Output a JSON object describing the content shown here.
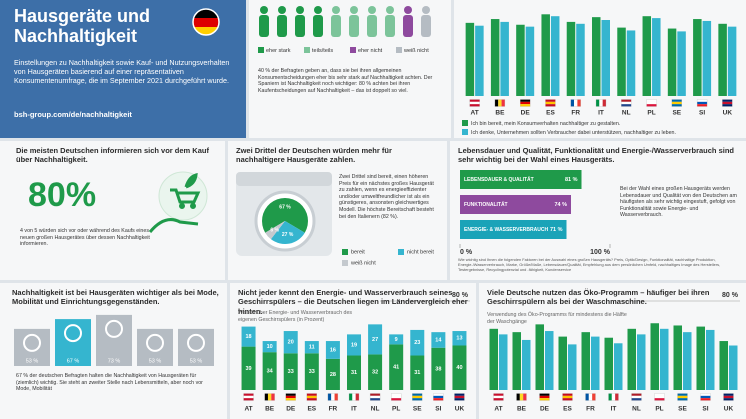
{
  "header": {
    "title": "Hausgeräte und Nachhaltigkeit",
    "text": "Einstellungen zu Nachhaltigkeit sowie Kauf- und Nutzungsverhalten von Hausgeräten basierend auf einer repräsentativen Konsumentenumfrage, die im September 2021 durchgeführt wurde.",
    "link": "bsh-group.com/de/nachhaltigkeit"
  },
  "attitude": {
    "type": "icon-count",
    "legend": [
      "eher stark",
      "teils/teils",
      "eher nicht",
      "weiß nicht"
    ],
    "counts": [
      4,
      4,
      1,
      1
    ],
    "colors": [
      "#1f9a4a",
      "#7cc49a",
      "#8e4a9e",
      "#b5bcc3"
    ],
    "text": "40 % der Befragten geben an, dass sie bei ihren allgemeinen Konsumentscheidungen eher bis sehr stark auf Nachhaltigkeit achten. Der Spaniern ist Nachhaltigkeit noch wichtiger: 80 % achten bei ihren Kaufentscheidungen auf Nachhaltigkeit – das ist doppelt so viel."
  },
  "readiness": {
    "type": "bar",
    "categories": [
      "AT",
      "BE",
      "DE",
      "ES",
      "FR",
      "IT",
      "NL",
      "PL",
      "SE",
      "SI",
      "UK"
    ],
    "series": [
      {
        "name": "Ich bin bereit, mein Konsumverhalten nachhaltiger zu gestalten.",
        "color": "#1f9a4a",
        "values": [
          77,
          81,
          75,
          86,
          78,
          83,
          72,
          84,
          71,
          81,
          76
        ]
      },
      {
        "name": "Ich denke, Unternehmen sollten Verbraucher dabei unterstützen, nachhaltiger zu leben.",
        "color": "#35b5cf",
        "values": [
          74,
          78,
          73,
          84,
          76,
          80,
          69,
          82,
          68,
          79,
          73
        ]
      }
    ]
  },
  "inform": {
    "title": "Die meisten Deutschen informieren sich vor dem Kauf über Nachhaltigkeit.",
    "figure": "80%",
    "text": "4 von 5 würden sich vor oder während des Kaufs eines neuen großen Hausgerätes über dessen Nachhaltigkeit informieren."
  },
  "price": {
    "type": "pie",
    "title": "Zwei Drittel der Deutschen würden mehr für nachhaltigere Hausgeräte zahlen.",
    "labels": [
      "bereit",
      "nicht bereit",
      "weiß nicht"
    ],
    "values": [
      67,
      27,
      6
    ],
    "value_labels": [
      "67 %",
      "27 %",
      "6 %"
    ],
    "colors": [
      "#1f9a4a",
      "#35b5cf",
      "#c4c9ce"
    ],
    "text": "Zwei Drittel sind bereit, einen höheren Preis für ein nächstes großes Hausgerät zu zahlen, wenn es energieeffizienter und/oder umweltfreundlicher ist als ein günstigeres, ansonsten gleichwertiges Modell. Die höchste Bereitschaft besteht bei den Italienern (82 %)."
  },
  "factors": {
    "type": "hbar",
    "title": "Lebensdauer und Qualität, Funktionalität und Energie-/Wasserverbrauch sind sehr wichtig bei der Wahl eines Hausgeräts.",
    "categories": [
      "LEBENSDAUER & QUALITÄT",
      "FUNKTIONALITÄT",
      "ENERGIE- & WASSERVERBRAUCH"
    ],
    "values": [
      81,
      74,
      71
    ],
    "value_labels": [
      "81 %",
      "74 %",
      "71 %"
    ],
    "colors": [
      "#1f9a4a",
      "#8e4a9e",
      "#1aa3b8"
    ],
    "xlim": [
      0,
      100
    ],
    "xticks": [
      {
        "value": 0,
        "label": "0 %"
      },
      {
        "value": 100,
        "label": "100 %"
      }
    ],
    "text": "Bei der Wahl eines großen Hausgeräts werden Lebensdauer und Qualität von den Deutschen am häufigsten als sehr wichtig eingestuft, gefolgt von Funktionalität sowie Energie- und Wasserverbrauch.",
    "note": "Wie wichtig sind Ihnen die folgenden Faktoren bei der Auswahl eines großen Hausgeräts? Preis, Optik/Design, Funktionalität, nachhaltige Produktion, Energie-/Wasserverbrauch, Marke, Größe/Maße, Lebensdauer/Qualität, Empfehlung aus dem persönlichen Umfeld, nachhaltiges Image des Herstellers, Testergebnisse, Recyclingpotenzial und -fähigkeit, Kundenservice"
  },
  "sectors": {
    "type": "bar",
    "title": "Nachhaltigkeit ist bei Hausgeräten wichtiger als bei Mode, Mobilität und Einrichtungsgegenständen.",
    "values": [
      53,
      67,
      73,
      53,
      53
    ],
    "value_labels": [
      "53 %",
      "67 %",
      "73 %",
      "53 %",
      "53 %"
    ],
    "colors": [
      "#b5bcc3",
      "#35b5cf",
      "#b5bcc3",
      "#b5bcc3",
      "#b5bcc3"
    ],
    "text": "67 % der deutschen Befragten halten die Nachhaltigkeit von Hausgeräten für (ziemlich) wichtig. Sie steht an zweiter Stelle nach Lebensmitteln, aber noch vor Mode, Mobilität"
  },
  "dishwasher": {
    "type": "stacked-bar",
    "title": "Nicht jeder kennt den Energie- und Wasserverbrauch seines Geschirrspülers – die Deutschen liegen im Ländervergleich eher hinten.",
    "subtitle": "Wissen über Energie- und Wasserverbrauch des eigenen Geschirrspülers (in Prozent)",
    "categories": [
      "AT",
      "BE",
      "DE",
      "ES",
      "FR",
      "IT",
      "NL",
      "PL",
      "SE",
      "SI",
      "UK"
    ],
    "series": [
      {
        "color": "#1f9a4a",
        "values": [
          39,
          34,
          33,
          33,
          28,
          31,
          32,
          41,
          31,
          38,
          40
        ]
      },
      {
        "color": "#35b5cf",
        "values": [
          18,
          10,
          20,
          11,
          16,
          19,
          27,
          9,
          23,
          14,
          13
        ]
      }
    ],
    "yticks": [
      {
        "value": 80,
        "label": "80 %"
      }
    ]
  },
  "eco": {
    "type": "bar",
    "title": "Viele Deutsche nutzen das Öko-Programm – häufiger bei ihren Geschirrspülern als bei der Waschmaschine.",
    "subtitle": "Verwendung des Öko-Programms für mindestens die Hälfte der Waschgänge",
    "categories": [
      "AT",
      "BE",
      "DE",
      "ES",
      "FR",
      "IT",
      "NL",
      "PL",
      "SE",
      "SI",
      "UK"
    ],
    "series": [
      {
        "color": "#1f9a4a",
        "values": [
          55,
          52,
          59,
          48,
          52,
          47,
          55,
          60,
          58,
          57,
          44
        ]
      },
      {
        "color": "#35b5cf",
        "values": [
          50,
          45,
          53,
          41,
          48,
          42,
          50,
          55,
          52,
          54,
          40
        ]
      }
    ],
    "yticks": [
      {
        "value": 80,
        "label": "80 %"
      }
    ]
  }
}
